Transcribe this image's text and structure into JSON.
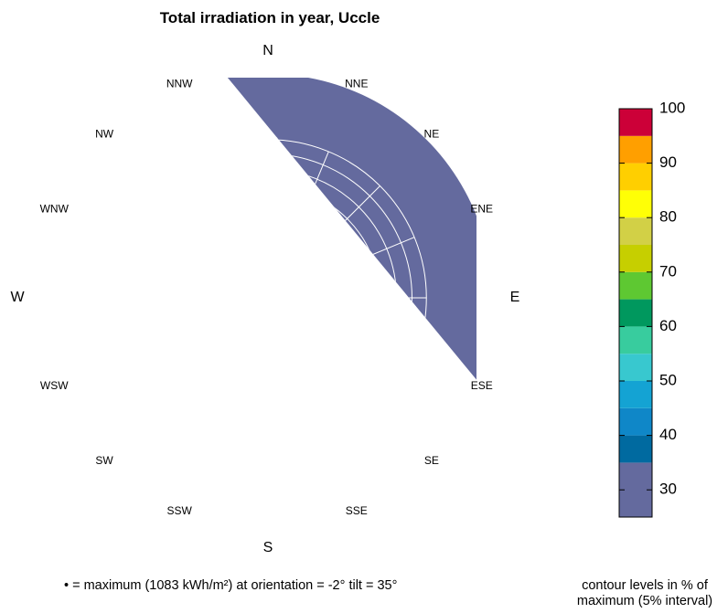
{
  "chart_data": {
    "type": "heatmap",
    "title": "Total irradiation in year, Uccle",
    "projection": "polar (tilt 0° at center, 90° at rim)",
    "tilt_ticks": [
      "10°",
      "20°",
      "30°",
      "40°",
      "50°",
      "60°",
      "70°",
      "80°",
      "90°"
    ],
    "directions": {
      "N": "N",
      "NNE": "NNE",
      "NE": "NE",
      "ENE": "ENE",
      "E": "E",
      "ESE": "ESE",
      "SE": "SE",
      "SSE": "SSE",
      "S": "S",
      "SSW": "SSW",
      "SW": "SW",
      "WSW": "WSW",
      "W": "W",
      "WNW": "WNW",
      "NW": "NW",
      "NNW": "NNW"
    },
    "maximum": {
      "value_kwh_m2": 1083,
      "orientation_deg": -2,
      "tilt_deg": 35
    },
    "contour_levels_percent": [
      30,
      35,
      40,
      45,
      50,
      55,
      60,
      65,
      70,
      75,
      80,
      85,
      90,
      95,
      100
    ],
    "contour_interval_percent": 5,
    "colorbar": {
      "range": [
        25,
        100
      ],
      "tick_labels": [
        "30",
        "40",
        "50",
        "60",
        "70",
        "80",
        "90",
        "100"
      ],
      "bands": [
        {
          "from": 25,
          "to": 35,
          "color": "#646a9e"
        },
        {
          "from": 35,
          "to": 40,
          "color": "#006aa0"
        },
        {
          "from": 40,
          "to": 45,
          "color": "#0f87c8"
        },
        {
          "from": 45,
          "to": 50,
          "color": "#14a3d3"
        },
        {
          "from": 50,
          "to": 55,
          "color": "#38c8cf"
        },
        {
          "from": 55,
          "to": 60,
          "color": "#38cc9e"
        },
        {
          "from": 60,
          "to": 65,
          "color": "#00985e"
        },
        {
          "from": 65,
          "to": 70,
          "color": "#5ec832"
        },
        {
          "from": 70,
          "to": 75,
          "color": "#c6cf00"
        },
        {
          "from": 75,
          "to": 80,
          "color": "#d2d046"
        },
        {
          "from": 80,
          "to": 85,
          "color": "#ffff06"
        },
        {
          "from": 85,
          "to": 90,
          "color": "#ffcf00"
        },
        {
          "from": 90,
          "to": 95,
          "color": "#ff9f00"
        },
        {
          "from": 95,
          "to": 100,
          "color": "#cc0038"
        }
      ]
    }
  },
  "footer": {
    "maximum_note": "• = maximum (1083 kWh/m²) at orientation = -2° tilt = 35°",
    "contour_note_line1": "contour levels in % of",
    "contour_note_line2": "maximum (5% interval)"
  }
}
